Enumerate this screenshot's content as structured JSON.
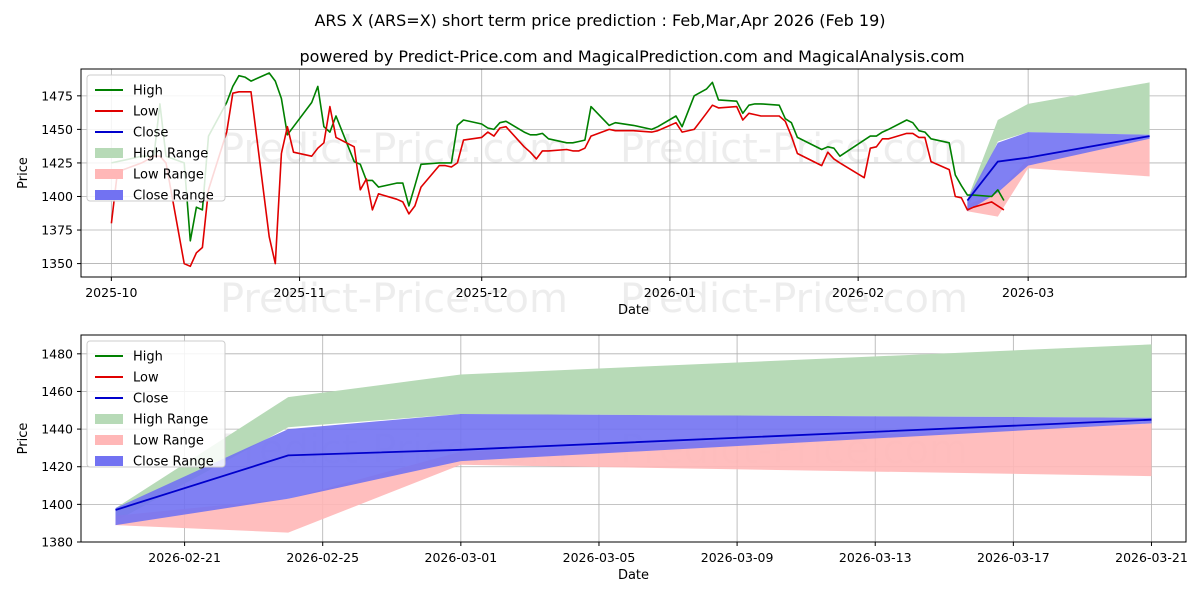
{
  "title": "ARS X (ARS=X) short term price prediction : Feb,Mar,Apr 2026 (Feb 19)",
  "subtitle": "powered by Predict-Price.com and MagicalPrediction.com and MagicalAnalysis.com",
  "watermark": "Predict-Price.com",
  "colors": {
    "high": "#008000",
    "low": "#e00000",
    "close": "#0000cc",
    "high_range": "#b7dab7",
    "low_range": "#ffb7b7",
    "close_range": "#7272f2"
  },
  "legend": [
    "High",
    "Low",
    "Close",
    "High Range",
    "Low Range",
    "Close Range"
  ],
  "chart_data": [
    {
      "type": "line",
      "name": "history",
      "xlabel": "Date",
      "ylabel": "Price",
      "x_range": [
        "2025-09-26",
        "2026-03-27"
      ],
      "ylim": [
        1340,
        1495
      ],
      "x_ticks": [
        "2025-10",
        "2025-11",
        "2025-12",
        "2026-01",
        "2026-02",
        "2026-03"
      ],
      "y_ticks": [
        1350,
        1375,
        1400,
        1425,
        1450,
        1475
      ],
      "series": [
        {
          "name": "High",
          "points": [
            [
              "2025-10-01",
              1425
            ],
            [
              "2025-10-03",
              1427
            ],
            [
              "2025-10-06",
              1430
            ],
            [
              "2025-10-08",
              1430
            ],
            [
              "2025-10-09",
              1469
            ],
            [
              "2025-10-10",
              1430
            ],
            [
              "2025-10-13",
              1425
            ],
            [
              "2025-10-14",
              1367
            ],
            [
              "2025-10-15",
              1392
            ],
            [
              "2025-10-16",
              1390
            ],
            [
              "2025-10-17",
              1445
            ],
            [
              "2025-10-20",
              1470
            ],
            [
              "2025-10-21",
              1482
            ],
            [
              "2025-10-22",
              1490
            ],
            [
              "2025-10-23",
              1489
            ],
            [
              "2025-10-24",
              1486
            ],
            [
              "2025-10-27",
              1492
            ],
            [
              "2025-10-28",
              1486
            ],
            [
              "2025-10-29",
              1473
            ],
            [
              "2025-10-30",
              1446
            ],
            [
              "2025-10-31",
              1452
            ],
            [
              "2025-11-03",
              1470
            ],
            [
              "2025-11-04",
              1482
            ],
            [
              "2025-11-05",
              1452
            ],
            [
              "2025-11-06",
              1448
            ],
            [
              "2025-11-07",
              1460
            ],
            [
              "2025-11-10",
              1426
            ],
            [
              "2025-11-11",
              1424
            ],
            [
              "2025-11-12",
              1412
            ],
            [
              "2025-11-13",
              1412
            ],
            [
              "2025-11-14",
              1407
            ],
            [
              "2025-11-17",
              1410
            ],
            [
              "2025-11-18",
              1410
            ],
            [
              "2025-11-19",
              1393
            ],
            [
              "2025-11-20",
              1408
            ],
            [
              "2025-11-21",
              1424
            ],
            [
              "2025-11-24",
              1425
            ],
            [
              "2025-11-25",
              1425
            ],
            [
              "2025-11-26",
              1425
            ],
            [
              "2025-11-27",
              1453
            ],
            [
              "2025-11-28",
              1457
            ],
            [
              "2025-12-01",
              1454
            ],
            [
              "2025-12-02",
              1451
            ],
            [
              "2025-12-03",
              1450
            ],
            [
              "2025-12-04",
              1455
            ],
            [
              "2025-12-05",
              1456
            ],
            [
              "2025-12-08",
              1448
            ],
            [
              "2025-12-09",
              1446
            ],
            [
              "2025-12-10",
              1446
            ],
            [
              "2025-12-11",
              1447
            ],
            [
              "2025-12-12",
              1443
            ],
            [
              "2025-12-15",
              1440
            ],
            [
              "2025-12-16",
              1440
            ],
            [
              "2025-12-17",
              1441
            ],
            [
              "2025-12-18",
              1442
            ],
            [
              "2025-12-19",
              1467
            ],
            [
              "2025-12-22",
              1453
            ],
            [
              "2025-12-23",
              1455
            ],
            [
              "2025-12-26",
              1453
            ],
            [
              "2025-12-29",
              1450
            ],
            [
              "2025-12-30",
              1452
            ],
            [
              "2026-01-02",
              1460
            ],
            [
              "2026-01-03",
              1452
            ],
            [
              "2026-01-05",
              1475
            ],
            [
              "2026-01-07",
              1480
            ],
            [
              "2026-01-08",
              1485
            ],
            [
              "2026-01-09",
              1472
            ],
            [
              "2026-01-12",
              1471
            ],
            [
              "2026-01-13",
              1462
            ],
            [
              "2026-01-14",
              1468
            ],
            [
              "2026-01-15",
              1469
            ],
            [
              "2026-01-16",
              1469
            ],
            [
              "2026-01-19",
              1468
            ],
            [
              "2026-01-20",
              1458
            ],
            [
              "2026-01-21",
              1455
            ],
            [
              "2026-01-22",
              1444
            ],
            [
              "2026-01-26",
              1435
            ],
            [
              "2026-01-27",
              1437
            ],
            [
              "2026-01-28",
              1436
            ],
            [
              "2026-01-29",
              1430
            ],
            [
              "2026-02-02",
              1442
            ],
            [
              "2026-02-03",
              1445
            ],
            [
              "2026-02-04",
              1445
            ],
            [
              "2026-02-05",
              1448
            ],
            [
              "2026-02-06",
              1450
            ],
            [
              "2026-02-09",
              1457
            ],
            [
              "2026-02-10",
              1455
            ],
            [
              "2026-02-11",
              1449
            ],
            [
              "2026-02-12",
              1448
            ],
            [
              "2026-02-13",
              1443
            ],
            [
              "2026-02-16",
              1440
            ],
            [
              "2026-02-17",
              1416
            ],
            [
              "2026-02-18",
              1408
            ],
            [
              "2026-02-19",
              1401
            ],
            [
              "2026-02-20",
              1401
            ],
            [
              "2026-02-23",
              1400
            ],
            [
              "2026-02-24",
              1405
            ],
            [
              "2026-02-25",
              1397
            ]
          ]
        },
        {
          "name": "Low",
          "points": [
            [
              "2025-10-01",
              1380
            ],
            [
              "2025-10-02",
              1418
            ],
            [
              "2025-10-03",
              1420
            ],
            [
              "2025-10-06",
              1425
            ],
            [
              "2025-10-08",
              1430
            ],
            [
              "2025-10-09",
              1430
            ],
            [
              "2025-10-10",
              1425
            ],
            [
              "2025-10-13",
              1350
            ],
            [
              "2025-10-14",
              1348
            ],
            [
              "2025-10-15",
              1358
            ],
            [
              "2025-10-16",
              1362
            ],
            [
              "2025-10-17",
              1405
            ],
            [
              "2025-10-20",
              1448
            ],
            [
              "2025-10-21",
              1477
            ],
            [
              "2025-10-22",
              1478
            ],
            [
              "2025-10-23",
              1478
            ],
            [
              "2025-10-24",
              1478
            ],
            [
              "2025-10-27",
              1370
            ],
            [
              "2025-10-28",
              1350
            ],
            [
              "2025-10-29",
              1432
            ],
            [
              "2025-10-30",
              1452
            ],
            [
              "2025-10-31",
              1433
            ],
            [
              "2025-11-03",
              1430
            ],
            [
              "2025-11-04",
              1436
            ],
            [
              "2025-11-05",
              1440
            ],
            [
              "2025-11-06",
              1467
            ],
            [
              "2025-11-07",
              1444
            ],
            [
              "2025-11-10",
              1437
            ],
            [
              "2025-11-11",
              1405
            ],
            [
              "2025-11-12",
              1413
            ],
            [
              "2025-11-13",
              1390
            ],
            [
              "2025-11-14",
              1402
            ],
            [
              "2025-11-17",
              1398
            ],
            [
              "2025-11-18",
              1396
            ],
            [
              "2025-11-19",
              1387
            ],
            [
              "2025-11-20",
              1393
            ],
            [
              "2025-11-21",
              1407
            ],
            [
              "2025-11-24",
              1423
            ],
            [
              "2025-11-25",
              1423
            ],
            [
              "2025-11-26",
              1422
            ],
            [
              "2025-11-27",
              1425
            ],
            [
              "2025-11-28",
              1442
            ],
            [
              "2025-12-01",
              1444
            ],
            [
              "2025-12-02",
              1448
            ],
            [
              "2025-12-03",
              1445
            ],
            [
              "2025-12-04",
              1451
            ],
            [
              "2025-12-05",
              1452
            ],
            [
              "2025-12-08",
              1437
            ],
            [
              "2025-12-09",
              1433
            ],
            [
              "2025-12-10",
              1428
            ],
            [
              "2025-12-11",
              1434
            ],
            [
              "2025-12-12",
              1434
            ],
            [
              "2025-12-15",
              1435
            ],
            [
              "2025-12-16",
              1434
            ],
            [
              "2025-12-17",
              1434
            ],
            [
              "2025-12-18",
              1436
            ],
            [
              "2025-12-19",
              1445
            ],
            [
              "2025-12-22",
              1450
            ],
            [
              "2025-12-23",
              1449
            ],
            [
              "2025-12-26",
              1449
            ],
            [
              "2025-12-29",
              1448
            ],
            [
              "2025-12-30",
              1449
            ],
            [
              "2026-01-02",
              1455
            ],
            [
              "2026-01-03",
              1448
            ],
            [
              "2026-01-05",
              1450
            ],
            [
              "2026-01-07",
              1462
            ],
            [
              "2026-01-08",
              1468
            ],
            [
              "2026-01-09",
              1466
            ],
            [
              "2026-01-12",
              1467
            ],
            [
              "2026-01-13",
              1457
            ],
            [
              "2026-01-14",
              1462
            ],
            [
              "2026-01-15",
              1461
            ],
            [
              "2026-01-16",
              1460
            ],
            [
              "2026-01-19",
              1460
            ],
            [
              "2026-01-20",
              1456
            ],
            [
              "2026-01-21",
              1445
            ],
            [
              "2026-01-22",
              1432
            ],
            [
              "2026-01-26",
              1423
            ],
            [
              "2026-01-27",
              1433
            ],
            [
              "2026-01-28",
              1428
            ],
            [
              "2026-01-29",
              1425
            ],
            [
              "2026-02-02",
              1414
            ],
            [
              "2026-02-03",
              1436
            ],
            [
              "2026-02-04",
              1437
            ],
            [
              "2026-02-05",
              1443
            ],
            [
              "2026-02-06",
              1443
            ],
            [
              "2026-02-09",
              1447
            ],
            [
              "2026-02-10",
              1447
            ],
            [
              "2026-02-11",
              1444
            ],
            [
              "2026-02-12",
              1444
            ],
            [
              "2026-02-13",
              1426
            ],
            [
              "2026-02-16",
              1420
            ],
            [
              "2026-02-17",
              1400
            ],
            [
              "2026-02-18",
              1399
            ],
            [
              "2026-02-19",
              1390
            ],
            [
              "2026-02-20",
              1392
            ],
            [
              "2026-02-23",
              1396
            ],
            [
              "2026-02-24",
              1393
            ],
            [
              "2026-02-25",
              1390
            ]
          ]
        }
      ],
      "forecast": {
        "dates": [
          "2026-02-19",
          "2026-02-24",
          "2026-03-01",
          "2026-03-21"
        ],
        "high_range": {
          "upper": [
            1398,
            1457,
            1469,
            1485
          ],
          "lower": [
            1391,
            1441,
            1448,
            1446
          ]
        },
        "low_range": {
          "upper": [
            1394,
            1403,
            1428,
            1443
          ],
          "lower": [
            1389,
            1385,
            1421,
            1415
          ]
        },
        "close_range": {
          "upper": [
            1398,
            1440,
            1448,
            1446
          ],
          "lower": [
            1389,
            1403,
            1423,
            1443
          ]
        },
        "close": [
          1397,
          1426,
          1429,
          1445
        ]
      }
    },
    {
      "type": "area",
      "name": "forecast",
      "xlabel": "Date",
      "ylabel": "Price",
      "x_range": [
        "2026-02-18",
        "2026-03-22"
      ],
      "ylim": [
        1380,
        1490
      ],
      "x_ticks": [
        "2026-02-21",
        "2026-02-25",
        "2026-03-01",
        "2026-03-05",
        "2026-03-09",
        "2026-03-13",
        "2026-03-17",
        "2026-03-21"
      ],
      "y_ticks": [
        1380,
        1400,
        1420,
        1440,
        1460,
        1480
      ],
      "forecast": {
        "dates": [
          "2026-02-19",
          "2026-02-24",
          "2026-03-01",
          "2026-03-21"
        ],
        "high_range": {
          "upper": [
            1398,
            1457,
            1469,
            1485
          ],
          "lower": [
            1391,
            1441,
            1448,
            1446
          ]
        },
        "low_range": {
          "upper": [
            1394,
            1403,
            1428,
            1443
          ],
          "lower": [
            1389,
            1385,
            1421,
            1415
          ]
        },
        "close_range": {
          "upper": [
            1398,
            1440,
            1448,
            1446
          ],
          "lower": [
            1389,
            1403,
            1423,
            1443
          ]
        },
        "close": [
          1397,
          1426,
          1429,
          1445
        ]
      }
    }
  ]
}
